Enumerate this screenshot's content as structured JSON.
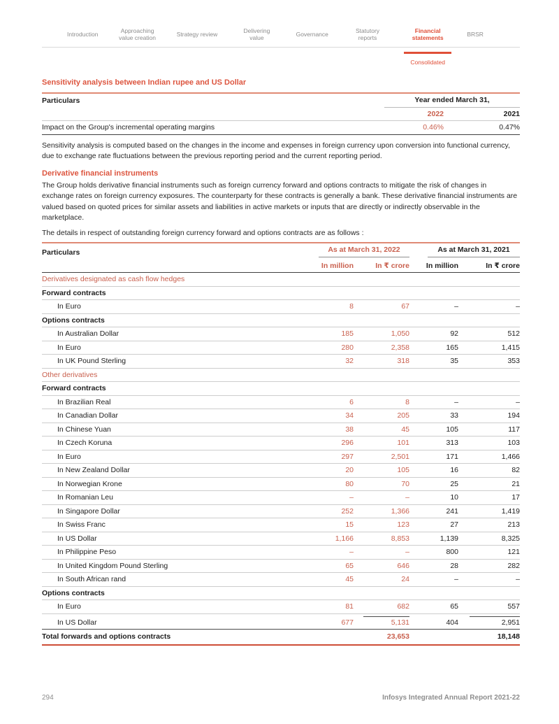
{
  "nav": {
    "items": [
      {
        "label": "Introduction",
        "active": false
      },
      {
        "label": "Approaching value creation",
        "active": false
      },
      {
        "label": "Strategy review",
        "active": false
      },
      {
        "label": "Delivering value",
        "active": false
      },
      {
        "label": "Governance",
        "active": false
      },
      {
        "label": "Statutory reports",
        "active": false
      },
      {
        "label": "Financial statements",
        "active": true
      },
      {
        "label": "BRSR",
        "active": false
      }
    ],
    "active_sub": "Consolidated"
  },
  "section1": {
    "heading": "Sensitivity analysis between Indian rupee and US Dollar",
    "table": {
      "col_particulars": "Particulars",
      "group_header": "Year ended March 31,",
      "years": [
        "2022",
        "2021"
      ],
      "rows": [
        {
          "label": "Impact on the Group's incremental operating margins",
          "v2022": "0.46%",
          "v2021": "0.47%"
        }
      ]
    },
    "paragraph": "Sensitivity analysis is computed based on the changes in the income and expenses in foreign currency upon conversion into functional currency, due to exchange rate fluctuations between the previous reporting period and the current reporting period."
  },
  "section2": {
    "heading": "Derivative financial instruments",
    "paragraph1": "The Group holds derivative financial instruments such as foreign currency forward and options contracts to mitigate the risk of changes in exchange rates on foreign currency exposures. The counterparty for these contracts is generally a bank. These derivative financial instruments are valued based on quoted prices for similar assets and liabilities in active markets or inputs that are directly or indirectly observable in the marketplace.",
    "paragraph2": "The details in respect of outstanding foreign currency forward and options contracts are as follows :"
  },
  "table2": {
    "col_particulars": "Particulars",
    "group_headers": [
      "As at March 31, 2022",
      "As at March 31, 2021"
    ],
    "sub_headers": [
      "In million",
      "In ₹ crore",
      "In million",
      "In ₹ crore"
    ],
    "rows": [
      {
        "type": "section",
        "label": "Derivatives designated as cash flow hedges"
      },
      {
        "type": "group",
        "label": "Forward contracts"
      },
      {
        "type": "data",
        "label": "In Euro",
        "values": [
          "8",
          "67",
          "–",
          "–"
        ]
      },
      {
        "type": "group",
        "label": "Options contracts"
      },
      {
        "type": "data",
        "label": "In Australian Dollar",
        "values": [
          "185",
          "1,050",
          "92",
          "512"
        ]
      },
      {
        "type": "data",
        "label": "In Euro",
        "values": [
          "280",
          "2,358",
          "165",
          "1,415"
        ]
      },
      {
        "type": "data",
        "label": "In UK Pound Sterling",
        "values": [
          "32",
          "318",
          "35",
          "353"
        ]
      },
      {
        "type": "section",
        "label": "Other derivatives"
      },
      {
        "type": "group",
        "label": "Forward contracts"
      },
      {
        "type": "data",
        "label": "In Brazilian Real",
        "values": [
          "6",
          "8",
          "–",
          "–"
        ]
      },
      {
        "type": "data",
        "label": "In Canadian Dollar",
        "values": [
          "34",
          "205",
          "33",
          "194"
        ]
      },
      {
        "type": "data",
        "label": "In Chinese Yuan",
        "values": [
          "38",
          "45",
          "105",
          "117"
        ]
      },
      {
        "type": "data",
        "label": "In Czech Koruna",
        "values": [
          "296",
          "101",
          "313",
          "103"
        ]
      },
      {
        "type": "data",
        "label": "In Euro",
        "values": [
          "297",
          "2,501",
          "171",
          "1,466"
        ]
      },
      {
        "type": "data",
        "label": "In New Zealand Dollar",
        "values": [
          "20",
          "105",
          "16",
          "82"
        ]
      },
      {
        "type": "data",
        "label": "In Norwegian Krone",
        "values": [
          "80",
          "70",
          "25",
          "21"
        ]
      },
      {
        "type": "data",
        "label": "In Romanian Leu",
        "values": [
          "–",
          "–",
          "10",
          "17"
        ]
      },
      {
        "type": "data",
        "label": "In Singapore Dollar",
        "values": [
          "252",
          "1,366",
          "241",
          "1,419"
        ]
      },
      {
        "type": "data",
        "label": "In Swiss Franc",
        "values": [
          "15",
          "123",
          "27",
          "213"
        ]
      },
      {
        "type": "data",
        "label": "In US Dollar",
        "values": [
          "1,166",
          "8,853",
          "1,139",
          "8,325"
        ]
      },
      {
        "type": "data",
        "label": "In Philippine Peso",
        "values": [
          "–",
          "–",
          "800",
          "121"
        ]
      },
      {
        "type": "data",
        "label": "In United Kingdom Pound Sterling",
        "values": [
          "65",
          "646",
          "28",
          "282"
        ]
      },
      {
        "type": "data",
        "label": "In South African rand",
        "values": [
          "45",
          "24",
          "–",
          "–"
        ]
      },
      {
        "type": "group",
        "label": "Options contracts"
      },
      {
        "type": "data",
        "label": "In Euro",
        "values": [
          "81",
          "682",
          "65",
          "557"
        ]
      },
      {
        "type": "data",
        "label": "In US Dollar",
        "values": [
          "677",
          "5,131",
          "404",
          "2,951"
        ],
        "pre_total": true
      },
      {
        "type": "total",
        "label": "Total forwards and options contracts",
        "values": [
          "",
          "23,653",
          "",
          "18,148"
        ]
      }
    ]
  },
  "footer": {
    "page_number": "294",
    "report_title": "Infosys Integrated Annual Report 2021-22"
  },
  "colors": {
    "accent_heading": "#dd5640",
    "accent_text": "#c9604e",
    "nav_accent": "#e04f38",
    "table_top_border": "#e08a74",
    "total_bottom_border": "#ce4d36"
  }
}
